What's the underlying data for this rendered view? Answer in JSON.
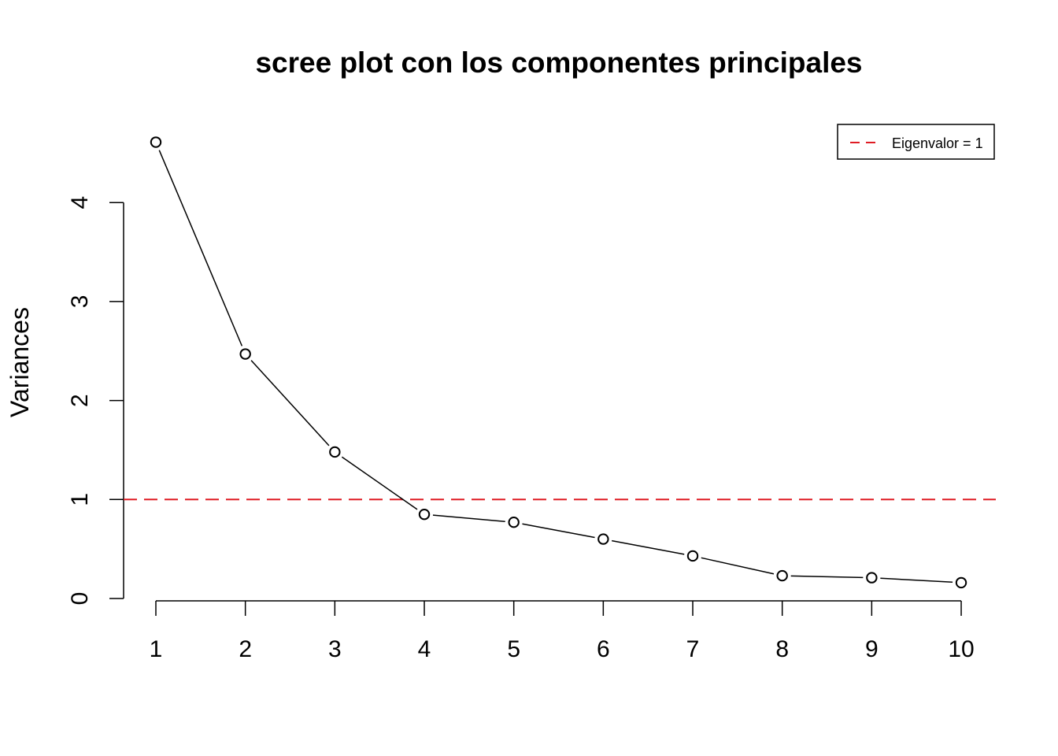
{
  "chart_data": {
    "type": "line",
    "title": "scree plot con los componentes principales",
    "xlabel": "",
    "ylabel": "Variances",
    "x": [
      1,
      2,
      3,
      4,
      5,
      6,
      7,
      8,
      9,
      10
    ],
    "x_tick_labels": [
      "1",
      "2",
      "3",
      "4",
      "5",
      "6",
      "7",
      "8",
      "9",
      "10"
    ],
    "y_ticks": [
      0,
      1,
      2,
      3,
      4
    ],
    "y_tick_labels": [
      "0",
      "1",
      "2",
      "3",
      "4"
    ],
    "series": [
      {
        "values": [
          4.61,
          2.47,
          1.48,
          0.85,
          0.77,
          0.6,
          0.43,
          0.23,
          0.21,
          0.16
        ],
        "color": "#000000",
        "marker": "open-circle"
      }
    ],
    "reference_line": {
      "y": 1,
      "color": "#DF1C24",
      "style": "dashed",
      "label": "Eigenvalor = 1"
    },
    "legend": {
      "position": "top-right",
      "entries": [
        "Eigenvalor = 1"
      ]
    },
    "grid": false
  }
}
